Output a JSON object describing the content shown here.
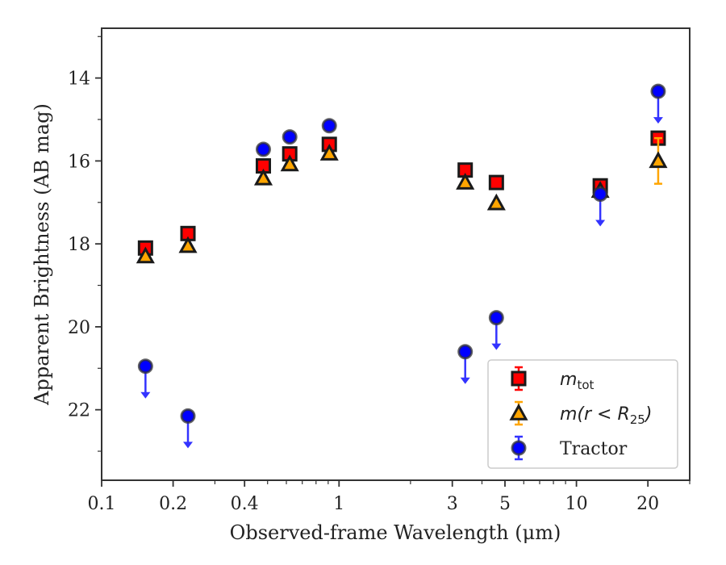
{
  "chart_data": {
    "type": "scatter",
    "xlabel": "Observed-frame Wavelength (μm)",
    "ylabel": "Apparent Brightness (AB mag)",
    "xscale": "log",
    "xlim": [
      0.1,
      30
    ],
    "ylim": [
      23.7,
      12.8
    ],
    "y_inverted": true,
    "x_ticks": [
      {
        "value": 0.1,
        "label": "0.1"
      },
      {
        "value": 0.2,
        "label": "0.2"
      },
      {
        "value": 0.4,
        "label": "0.4"
      },
      {
        "value": 1,
        "label": "1"
      },
      {
        "value": 3,
        "label": "3"
      },
      {
        "value": 5,
        "label": "5"
      },
      {
        "value": 10,
        "label": "10"
      },
      {
        "value": 20,
        "label": "20"
      }
    ],
    "y_ticks": [
      {
        "value": 14,
        "label": "14"
      },
      {
        "value": 16,
        "label": "16"
      },
      {
        "value": 18,
        "label": "18"
      },
      {
        "value": 20,
        "label": "20"
      },
      {
        "value": 22,
        "label": "22"
      }
    ],
    "grid": false,
    "legend_position": "lower-right",
    "series": [
      {
        "name": "m_tot",
        "legend_main": "m",
        "legend_sub": "tot",
        "legend_suffix": "",
        "marker": "square",
        "color": "#ff0000",
        "points": [
          {
            "x": 0.153,
            "y": 18.1
          },
          {
            "x": 0.231,
            "y": 17.75
          },
          {
            "x": 0.48,
            "y": 16.12
          },
          {
            "x": 0.62,
            "y": 15.83
          },
          {
            "x": 0.91,
            "y": 15.6
          },
          {
            "x": 3.4,
            "y": 16.22
          },
          {
            "x": 4.6,
            "y": 16.52
          },
          {
            "x": 12.6,
            "y": 16.6
          },
          {
            "x": 22.1,
            "y": 15.45
          }
        ]
      },
      {
        "name": "m(r < R_25)",
        "legend_main": "m(r < R",
        "legend_sub": "25",
        "legend_suffix": ")",
        "marker": "triangle",
        "color": "#ffa500",
        "points": [
          {
            "x": 0.153,
            "y": 18.3
          },
          {
            "x": 0.231,
            "y": 18.05
          },
          {
            "x": 0.48,
            "y": 16.42
          },
          {
            "x": 0.62,
            "y": 16.08
          },
          {
            "x": 0.91,
            "y": 15.82
          },
          {
            "x": 3.4,
            "y": 16.52
          },
          {
            "x": 4.6,
            "y": 17.02
          },
          {
            "x": 12.6,
            "y": 16.72
          },
          {
            "x": 22.1,
            "y": 16.0,
            "err": 0.55
          }
        ]
      },
      {
        "name": "Tractor",
        "legend_main": "Tractor",
        "legend_sub": "",
        "legend_suffix": "",
        "marker": "circle",
        "color": "#0000ff",
        "points": [
          {
            "x": 0.153,
            "y": 20.95,
            "upper_limit": true
          },
          {
            "x": 0.231,
            "y": 22.15,
            "upper_limit": true
          },
          {
            "x": 0.48,
            "y": 15.72
          },
          {
            "x": 0.62,
            "y": 15.42
          },
          {
            "x": 0.91,
            "y": 15.15
          },
          {
            "x": 3.4,
            "y": 20.6,
            "upper_limit": true
          },
          {
            "x": 4.6,
            "y": 19.78,
            "upper_limit": true
          },
          {
            "x": 12.6,
            "y": 16.8,
            "upper_limit": true
          },
          {
            "x": 22.1,
            "y": 14.32,
            "upper_limit": true
          }
        ]
      }
    ]
  }
}
